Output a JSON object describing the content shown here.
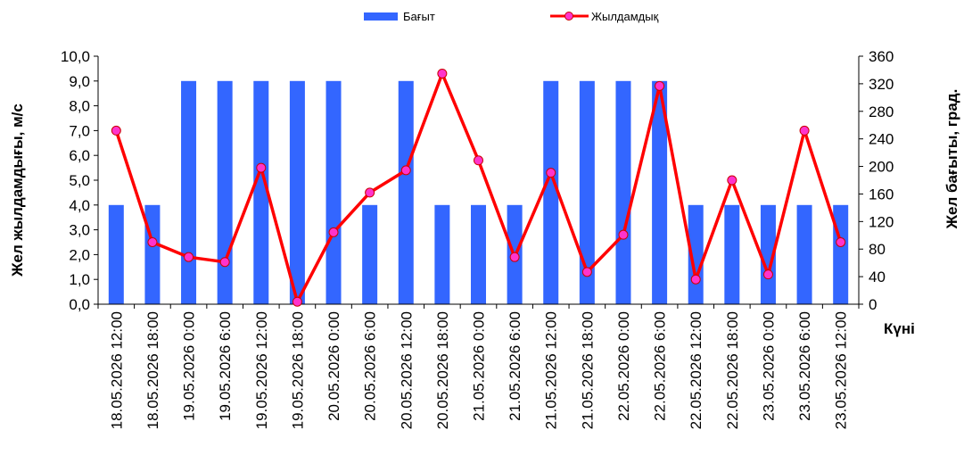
{
  "chart_data": {
    "type": "bar+line",
    "xlabel": "Күні",
    "ylabel_left": "Жел жылдамдығы, м/с",
    "ylabel_right": "Жел бағыты, град.",
    "ylim_left": [
      0,
      10
    ],
    "ylim_right": [
      0,
      360
    ],
    "yticks_left": [
      "0,0",
      "1,0",
      "2,0",
      "3,0",
      "4,0",
      "5,0",
      "6,0",
      "7,0",
      "8,0",
      "9,0",
      "10,0"
    ],
    "yticks_right": [
      "0",
      "40",
      "80",
      "120",
      "160",
      "200",
      "240",
      "280",
      "320",
      "360"
    ],
    "legend_position": "top",
    "categories": [
      "18.05.2026 12:00",
      "18.05.2026 18:00",
      "19.05.2026 0:00",
      "19.05.2026 6:00",
      "19.05.2026 12:00",
      "19.05.2026 18:00",
      "20.05.2026 0:00",
      "20.05.2026 6:00",
      "20.05.2026 12:00",
      "20.05.2026 18:00",
      "21.05.2026 0:00",
      "21.05.2026 6:00",
      "21.05.2026 12:00",
      "21.05.2026 18:00",
      "22.05.2026 0:00",
      "22.05.2026 6:00",
      "22.05.2026 12:00",
      "22.05.2026 18:00",
      "23.05.2026 0:00",
      "23.05.2026 6:00",
      "23.05.2026 12:00"
    ],
    "series": [
      {
        "name": "Бағыт",
        "type": "bar",
        "axis": "right",
        "color": "#3366ff",
        "values": [
          144,
          144,
          324,
          324,
          324,
          324,
          324,
          144,
          324,
          144,
          144,
          144,
          324,
          324,
          324,
          324,
          144,
          144,
          144,
          144,
          144
        ]
      },
      {
        "name": "Жылдамдық",
        "type": "line",
        "axis": "left",
        "color": "#ff0000",
        "marker_color": "#ff33cc",
        "values": [
          7.0,
          2.5,
          1.9,
          1.7,
          5.5,
          0.1,
          2.9,
          4.5,
          5.4,
          9.3,
          5.8,
          1.9,
          5.3,
          1.3,
          2.8,
          8.8,
          1.0,
          5.0,
          1.2,
          7.0,
          2.5
        ]
      }
    ]
  }
}
